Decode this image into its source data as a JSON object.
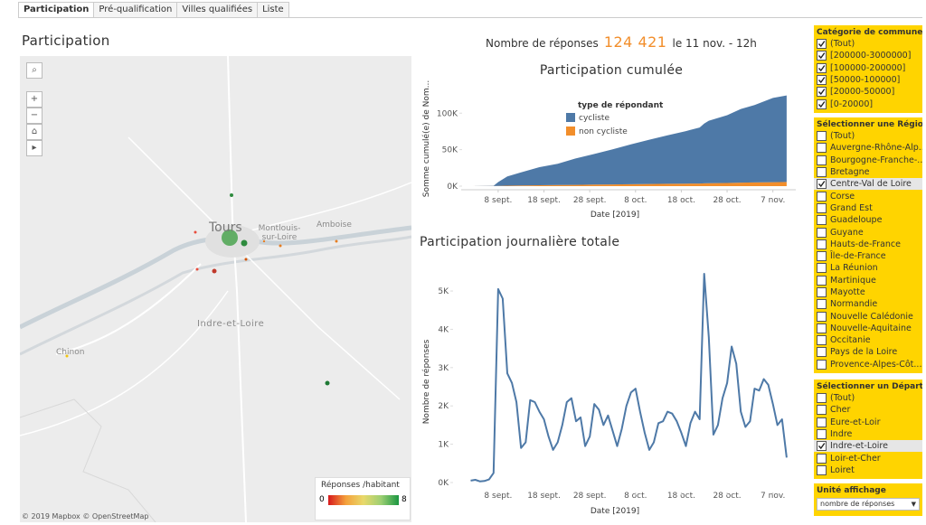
{
  "tabs": [
    "Participation",
    "Pré-qualification",
    "Villes qualifiées",
    "Liste"
  ],
  "page_title": "Participation",
  "summary": {
    "label": "Nombre de réponses",
    "count": "124 421",
    "date": "le 11 nov. - 12h"
  },
  "map": {
    "places": {
      "city": "Tours",
      "town_a": "Montlouis-sur-Loire",
      "town_b": "Amboise",
      "department": "Indre-et-Loire",
      "town_c": "Chinon"
    },
    "attribution": "© 2019 Mapbox © OpenStreetMap",
    "legend": {
      "title": "Réponses /habitant",
      "min": 0,
      "max": 8
    }
  },
  "chart_data": [
    {
      "type": "area",
      "title": "Participation cumulée",
      "x_label": "Date [2019]",
      "y_label": "Somme cumulé(e) de Nom...",
      "legend_title": "type de répondant",
      "x": [
        "2019-09-02",
        "2019-09-07",
        "2019-09-08",
        "2019-09-10",
        "2019-09-13",
        "2019-09-17",
        "2019-09-21",
        "2019-09-25",
        "2019-09-29",
        "2019-10-03",
        "2019-10-07",
        "2019-10-11",
        "2019-10-15",
        "2019-10-19",
        "2019-10-22",
        "2019-10-23",
        "2019-10-24",
        "2019-10-28",
        "2019-10-31",
        "2019-11-03",
        "2019-11-07",
        "2019-11-10"
      ],
      "series": [
        {
          "name": "cycliste",
          "color": "#4e79a7",
          "values": [
            0,
            480,
            5250,
            12600,
            17950,
            24800,
            29300,
            36400,
            42000,
            48200,
            54600,
            60700,
            66550,
            72000,
            76800,
            81950,
            85600,
            92850,
            100950,
            106200,
            115450,
            118800
          ]
        },
        {
          "name": "non cycliste",
          "color": "#f28e2b",
          "values": [
            0,
            20,
            250,
            600,
            850,
            1200,
            1400,
            1700,
            2000,
            2300,
            2600,
            2900,
            3150,
            3400,
            3600,
            3850,
            4000,
            4350,
            4750,
            5000,
            5450,
            5600
          ]
        }
      ],
      "stacked": true,
      "xlim": [
        "2019-08-25",
        "2019-11-12"
      ],
      "xticks": [
        {
          "value": "2019-09-08",
          "label": "8 sept."
        },
        {
          "value": "2019-09-18",
          "label": "18 sept."
        },
        {
          "value": "2019-09-28",
          "label": "28 sept."
        },
        {
          "value": "2019-10-08",
          "label": "8 oct."
        },
        {
          "value": "2019-10-18",
          "label": "18 oct."
        },
        {
          "value": "2019-10-28",
          "label": "28 oct."
        },
        {
          "value": "2019-11-07",
          "label": "7 nov."
        }
      ],
      "ylim": [
        -5000,
        135000
      ],
      "yticks": [
        {
          "value": 0,
          "label": "0K"
        },
        {
          "value": 50000,
          "label": "50K"
        },
        {
          "value": 100000,
          "label": "100K"
        }
      ]
    },
    {
      "type": "line",
      "title": "Participation journalière totale",
      "x_label": "Date [2019]",
      "y_label": "Nombre de réponses",
      "x": [
        "2019-09-02",
        "2019-09-03",
        "2019-09-04",
        "2019-09-05",
        "2019-09-06",
        "2019-09-07",
        "2019-09-08",
        "2019-09-09",
        "2019-09-10",
        "2019-09-11",
        "2019-09-12",
        "2019-09-13",
        "2019-09-14",
        "2019-09-15",
        "2019-09-16",
        "2019-09-17",
        "2019-09-18",
        "2019-09-19",
        "2019-09-20",
        "2019-09-21",
        "2019-09-22",
        "2019-09-23",
        "2019-09-24",
        "2019-09-25",
        "2019-09-26",
        "2019-09-27",
        "2019-09-28",
        "2019-09-29",
        "2019-09-30",
        "2019-10-01",
        "2019-10-02",
        "2019-10-03",
        "2019-10-04",
        "2019-10-05",
        "2019-10-06",
        "2019-10-07",
        "2019-10-08",
        "2019-10-09",
        "2019-10-10",
        "2019-10-11",
        "2019-10-12",
        "2019-10-13",
        "2019-10-14",
        "2019-10-15",
        "2019-10-16",
        "2019-10-17",
        "2019-10-18",
        "2019-10-19",
        "2019-10-20",
        "2019-10-21",
        "2019-10-22",
        "2019-10-23",
        "2019-10-24",
        "2019-10-25",
        "2019-10-26",
        "2019-10-27",
        "2019-10-28",
        "2019-10-29",
        "2019-10-30",
        "2019-10-31",
        "2019-11-01",
        "2019-11-02",
        "2019-11-03",
        "2019-11-04",
        "2019-11-05",
        "2019-11-06",
        "2019-11-07",
        "2019-11-08",
        "2019-11-09",
        "2019-11-10"
      ],
      "series": [
        {
          "name": "Nombre de réponses",
          "color": "#4e79a7",
          "values": [
            50,
            70,
            30,
            40,
            80,
            250,
            5050,
            4800,
            2850,
            2600,
            2100,
            900,
            1050,
            2150,
            2100,
            1850,
            1650,
            1200,
            850,
            1050,
            1500,
            2100,
            2200,
            1600,
            1700,
            950,
            1200,
            2050,
            1900,
            1500,
            1750,
            1350,
            950,
            1400,
            2000,
            2350,
            2450,
            1850,
            1300,
            850,
            1050,
            1550,
            1600,
            1850,
            1800,
            1600,
            1300,
            950,
            1550,
            1850,
            1650,
            5450,
            3800,
            1250,
            1500,
            2200,
            2600,
            3550,
            3100,
            1850,
            1450,
            1600,
            2450,
            2400,
            2700,
            2550,
            2050,
            1500,
            1650,
            650
          ]
        }
      ],
      "xlim": [
        "2019-08-25",
        "2019-11-12"
      ],
      "xticks": [
        {
          "value": "2019-09-08",
          "label": "8 sept."
        },
        {
          "value": "2019-09-18",
          "label": "18 sept."
        },
        {
          "value": "2019-09-28",
          "label": "28 sept."
        },
        {
          "value": "2019-10-08",
          "label": "8 oct."
        },
        {
          "value": "2019-10-18",
          "label": "18 oct."
        },
        {
          "value": "2019-10-28",
          "label": "28 oct."
        },
        {
          "value": "2019-11-07",
          "label": "7 nov."
        }
      ],
      "ylim": [
        -260,
        5520
      ],
      "yticks": [
        {
          "value": 0,
          "label": "0K"
        },
        {
          "value": 1000,
          "label": "1K"
        },
        {
          "value": 2000,
          "label": "2K"
        },
        {
          "value": 3000,
          "label": "3K"
        },
        {
          "value": 4000,
          "label": "4K"
        },
        {
          "value": 5000,
          "label": "5K"
        }
      ]
    }
  ],
  "filters": [
    {
      "title": "Catégorie de commune",
      "items": [
        {
          "label": "(Tout)",
          "checked": true
        },
        {
          "label": "[200000-3000000]",
          "checked": true
        },
        {
          "label": "[100000-200000]",
          "checked": true
        },
        {
          "label": "[50000-100000]",
          "checked": true
        },
        {
          "label": "[20000-50000]",
          "checked": true
        },
        {
          "label": "[0-20000]",
          "checked": true
        }
      ]
    },
    {
      "title": "Sélectionner une Région",
      "items": [
        {
          "label": "(Tout)",
          "checked": false
        },
        {
          "label": "Auvergne-Rhône-Alp...",
          "checked": false
        },
        {
          "label": "Bourgogne-Franche-...",
          "checked": false
        },
        {
          "label": "Bretagne",
          "checked": false
        },
        {
          "label": "Centre-Val de Loire",
          "checked": true
        },
        {
          "label": "Corse",
          "checked": false
        },
        {
          "label": "Grand Est",
          "checked": false
        },
        {
          "label": "Guadeloupe",
          "checked": false
        },
        {
          "label": "Guyane",
          "checked": false
        },
        {
          "label": "Hauts-de-France",
          "checked": false
        },
        {
          "label": "Île-de-France",
          "checked": false
        },
        {
          "label": "La Réunion",
          "checked": false
        },
        {
          "label": "Martinique",
          "checked": false
        },
        {
          "label": "Mayotte",
          "checked": false
        },
        {
          "label": "Normandie",
          "checked": false
        },
        {
          "label": "Nouvelle Calédonie",
          "checked": false
        },
        {
          "label": "Nouvelle-Aquitaine",
          "checked": false
        },
        {
          "label": "Occitanie",
          "checked": false
        },
        {
          "label": "Pays de la Loire",
          "checked": false
        },
        {
          "label": "Provence-Alpes-Côt...",
          "checked": false
        }
      ]
    },
    {
      "title": "Sélectionner un Départe...",
      "items": [
        {
          "label": "(Tout)",
          "checked": false
        },
        {
          "label": "Cher",
          "checked": false
        },
        {
          "label": "Eure-et-Loir",
          "checked": false
        },
        {
          "label": "Indre",
          "checked": false
        },
        {
          "label": "Indre-et-Loire",
          "checked": true
        },
        {
          "label": "Loir-et-Cher",
          "checked": false
        },
        {
          "label": "Loiret",
          "checked": false
        }
      ]
    }
  ],
  "display_unit": {
    "title": "Unité affichage",
    "value": "nombre de réponses"
  }
}
